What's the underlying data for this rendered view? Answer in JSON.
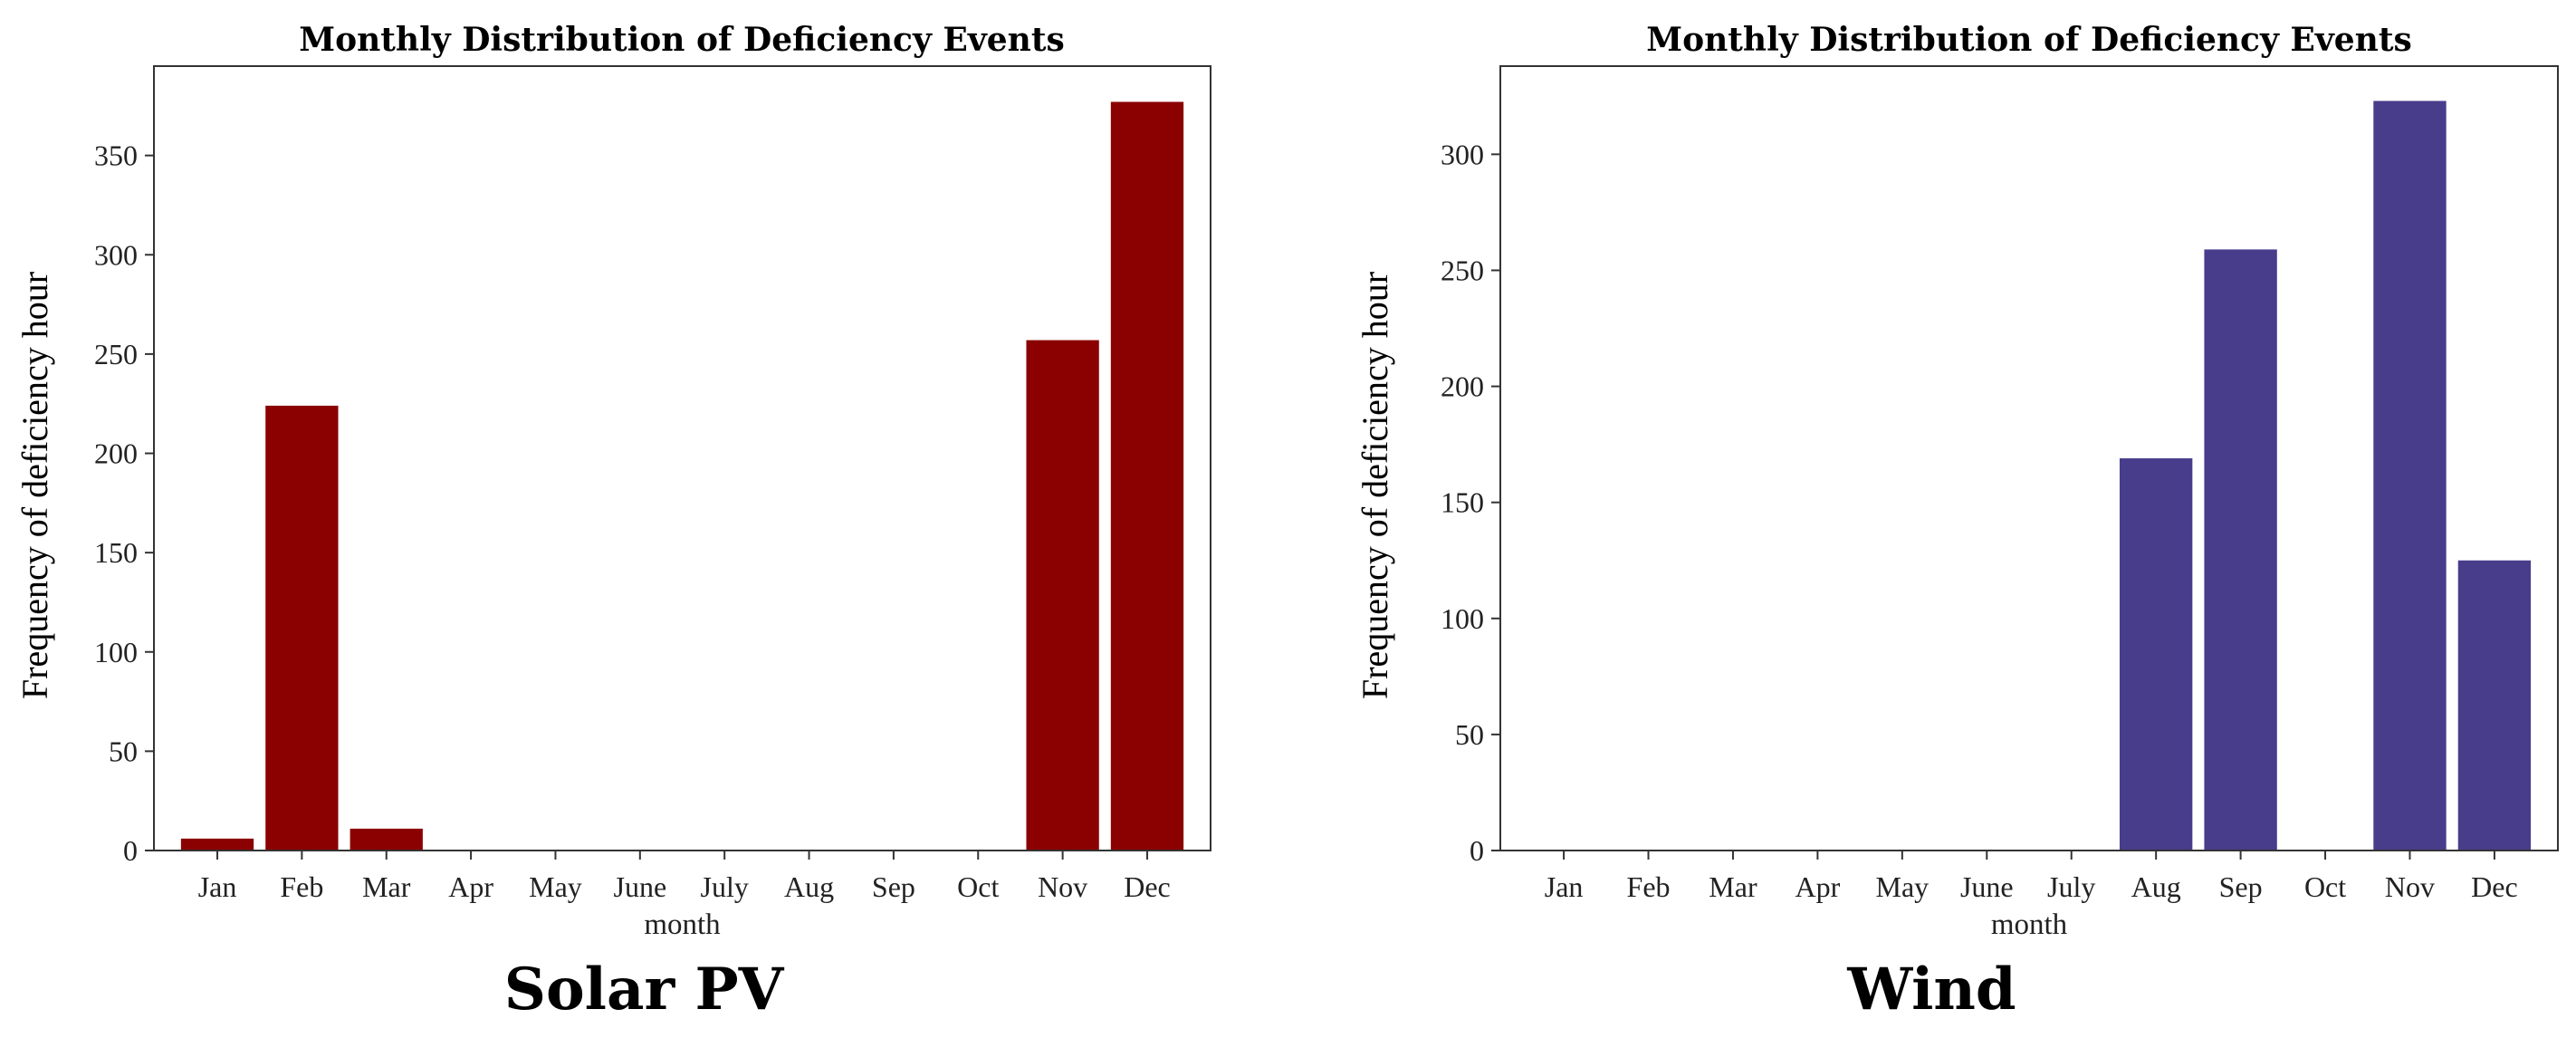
{
  "chart_data": [
    {
      "type": "bar",
      "title": "Monthly Distribution of Deficiency Events",
      "xlabel": "month",
      "ylabel": "Frequency of deficiency hour",
      "caption": "Solar PV",
      "categories": [
        "Jan",
        "Feb",
        "Mar",
        "Apr",
        "May",
        "June",
        "July",
        "Aug",
        "Sep",
        "Oct",
        "Nov",
        "Dec"
      ],
      "values": [
        6,
        224,
        11,
        0,
        0,
        0,
        0,
        0,
        0,
        0,
        257,
        377
      ],
      "ylim": [
        0,
        395
      ],
      "yticks": [
        0,
        50,
        100,
        150,
        200,
        250,
        300,
        350
      ],
      "color": "#8b0000",
      "grid": false
    },
    {
      "type": "bar",
      "title": "Monthly Distribution of Deficiency Events",
      "xlabel": "month",
      "ylabel": "Frequency of deficiency hour",
      "caption": "Wind",
      "categories": [
        "Jan",
        "Feb",
        "Mar",
        "Apr",
        "May",
        "June",
        "July",
        "Aug",
        "Sep",
        "Oct",
        "Nov",
        "Dec"
      ],
      "values": [
        0,
        0,
        0,
        0,
        0,
        0,
        0,
        169,
        259,
        0,
        323,
        125
      ],
      "ylim": [
        0,
        338
      ],
      "yticks": [
        0,
        50,
        100,
        150,
        200,
        250,
        300
      ],
      "color": "#483d8b",
      "grid": false
    }
  ]
}
